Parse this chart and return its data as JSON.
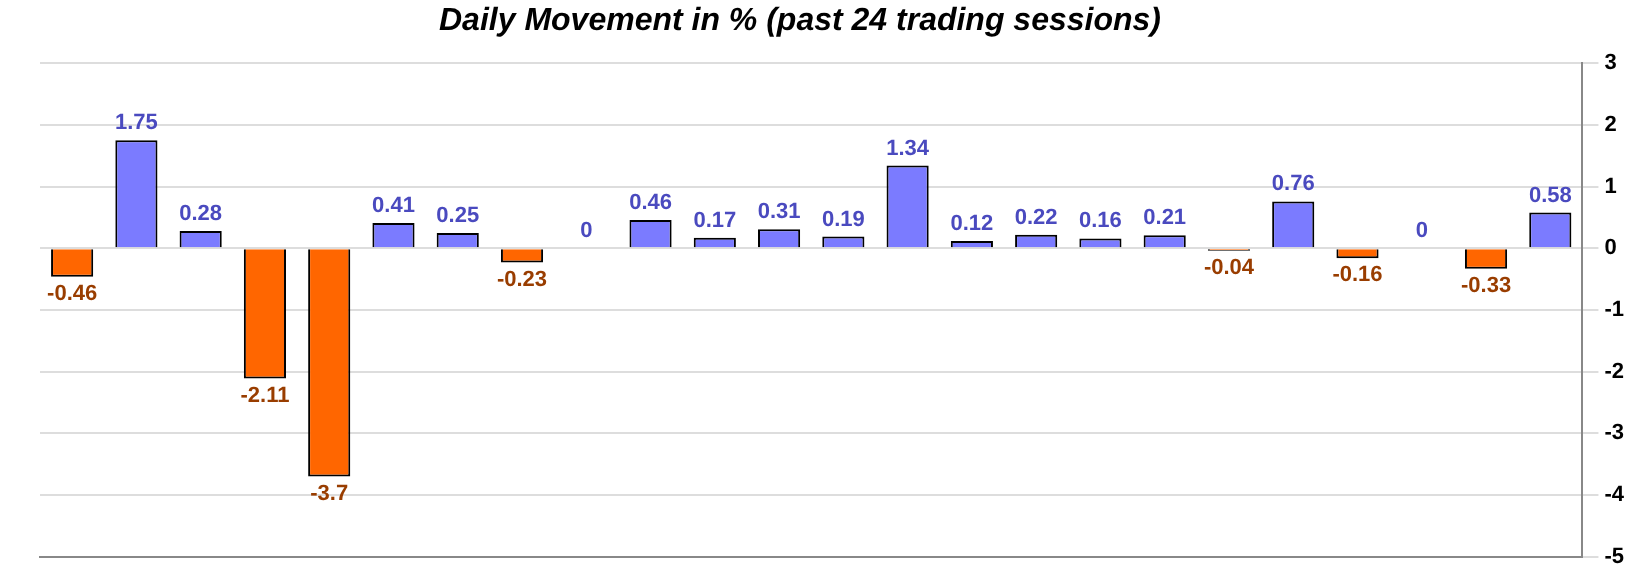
{
  "chart_data": {
    "type": "bar",
    "title": "Daily Movement in % (past 24 trading sessions)",
    "categories": [
      null,
      null,
      null,
      null,
      null,
      null,
      null,
      null,
      null,
      null,
      null,
      null,
      null,
      null,
      null,
      null,
      null,
      null,
      null,
      null,
      null,
      null,
      null,
      null
    ],
    "values": [
      -0.46,
      1.75,
      0.28,
      -2.11,
      -3.7,
      0.41,
      0.25,
      -0.23,
      0,
      0.46,
      0.17,
      0.31,
      0.19,
      1.34,
      0.12,
      0.22,
      0.16,
      0.21,
      -0.04,
      0.76,
      -0.16,
      0,
      -0.33,
      0.58
    ],
    "colors": [
      "#ff6600",
      "#7b7bff",
      "#7b7bff",
      "#ff6600",
      "#ff6600",
      "#7b7bff",
      "#7b7bff",
      "#ff6600",
      "#7b7bff",
      "#7b7bff",
      "#7b7bff",
      "#7b7bff",
      "#7b7bff",
      "#7b7bff",
      "#7b7bff",
      "#7b7bff",
      "#7b7bff",
      "#7b7bff",
      "#ff6600",
      "#7b7bff",
      "#ff6600",
      "#7b7bff",
      "#ff6600",
      "#7b7bff"
    ],
    "ylim": [
      -5,
      3
    ],
    "yticks": [
      -5,
      -4,
      -3,
      -2,
      -1,
      0,
      1,
      2,
      3
    ],
    "grid": "y",
    "data_labels": true,
    "legend": false
  }
}
